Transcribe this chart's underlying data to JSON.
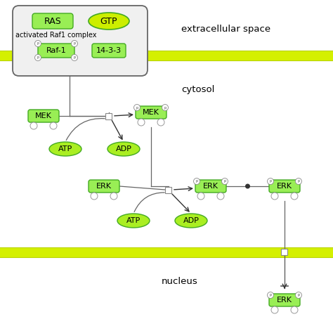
{
  "bg_color": "#ffffff",
  "membrane_color": "#d4f000",
  "membrane_stroke": "#b8d400",
  "node_fill": "#99ee55",
  "node_stroke": "#44aa22",
  "gtp_fill": "#ccee00",
  "ellipse_fill": "#aaee22",
  "text_color": "#000000",
  "arrow_color": "#444444",
  "line_color": "#555555",
  "outer_box_fill": "#f0f0f0",
  "outer_box_stroke": "#666666",
  "labels": {
    "extracellular": "extracellular space",
    "cytosol": "cytosol",
    "nucleus": "nucleus",
    "complex_title": "activated Raf1 complex"
  }
}
